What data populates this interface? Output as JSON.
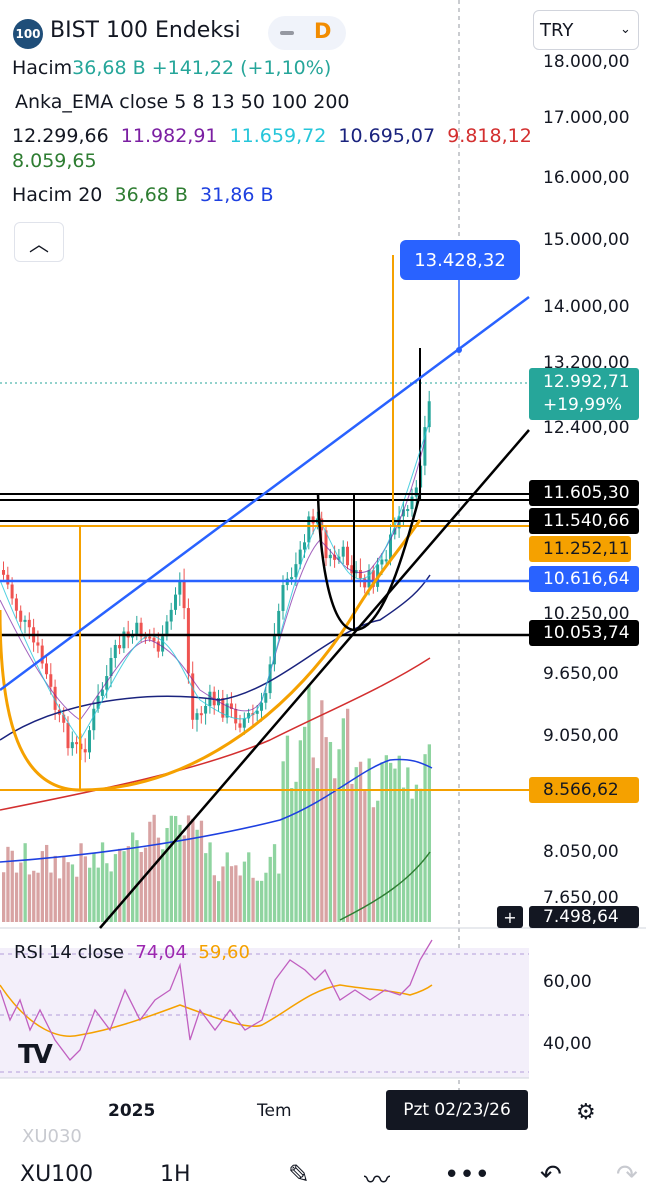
{
  "header": {
    "badge": "100",
    "title": "BIST 100 Endeksi",
    "interval_badge": "D",
    "currency": "TRY",
    "volume_label": "Hacim",
    "volume_value": "36,68 B",
    "change": "+141,22 (+1,10%)",
    "ema_title": "Anka_EMA close  5  8  13  50  100  200",
    "ema_values": [
      {
        "text": "12.299,66",
        "color": "#131722"
      },
      {
        "text": "11.982,91",
        "color": "#7b1fa2"
      },
      {
        "text": "11.659,72",
        "color": "#26c6da"
      },
      {
        "text": "10.695,07",
        "color": "#1a237e"
      },
      {
        "text": "9.818,12",
        "color": "#d32f2f"
      },
      {
        "text": "8.059,65",
        "color": "#2e7d32"
      }
    ],
    "vol_ma_label": "Hacim 20",
    "vol_ma_value1": "36,68 B",
    "vol_ma_value2": "31,86 B"
  },
  "price_axis": [
    "18.000,00",
    "17.000,00",
    "16.000,00",
    "15.000,00",
    "14.000,00",
    "13.200,00",
    "12.400,00",
    "10.250,00",
    "9.650,00",
    "9.050,00",
    "8.050,00",
    "7.650,00"
  ],
  "price_tags": {
    "target": "13.428,32",
    "last_price": "12.992,71",
    "last_change": "+19,99%",
    "black1": "11.605,30",
    "black2": "11.540,66",
    "orange1": "11.252,11",
    "blue1": "10.616,64",
    "black3": "10.053,74",
    "orange2": "8.566,62",
    "crosshair_value": "7.498,64"
  },
  "rsi": {
    "label": "RSI 14 close",
    "value": "74,04",
    "ma_value": "59,60",
    "axis": [
      "60,00",
      "40,00"
    ]
  },
  "x_axis": [
    "2025",
    "Tem"
  ],
  "date_tag": "Pzt 02/23/26",
  "bottom": {
    "ghost_symbol": "XU030",
    "symbol": "XU100",
    "timeframe": "1H"
  },
  "colors": {
    "up": "#26a69a",
    "down": "#ef5350",
    "accent": "#2962ff",
    "orange": "#f5a100"
  }
}
